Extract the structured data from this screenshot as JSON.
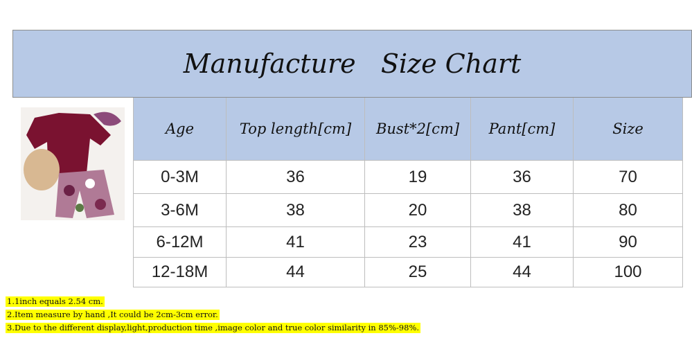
{
  "header": {
    "title": "Manufacture   Size Chart"
  },
  "table": {
    "columns": [
      "Age",
      "Top length[cm]",
      "Bust*2[cm]",
      "Pant[cm]",
      "Size"
    ],
    "rows": [
      [
        "0-3M",
        36,
        19,
        36,
        70
      ],
      [
        "3-6M",
        38,
        20,
        38,
        80
      ],
      [
        "6-12M",
        41,
        23,
        41,
        90
      ],
      [
        "12-18M",
        44,
        25,
        44,
        100
      ]
    ]
  },
  "notes": [
    "1.1inch equals 2.54 cm.",
    "2.Item measure by hand ,It could be 2cm-3cm error.",
    "3.Due to the different display,light,production time ,image color and true color similarity in 85%-98%."
  ]
}
